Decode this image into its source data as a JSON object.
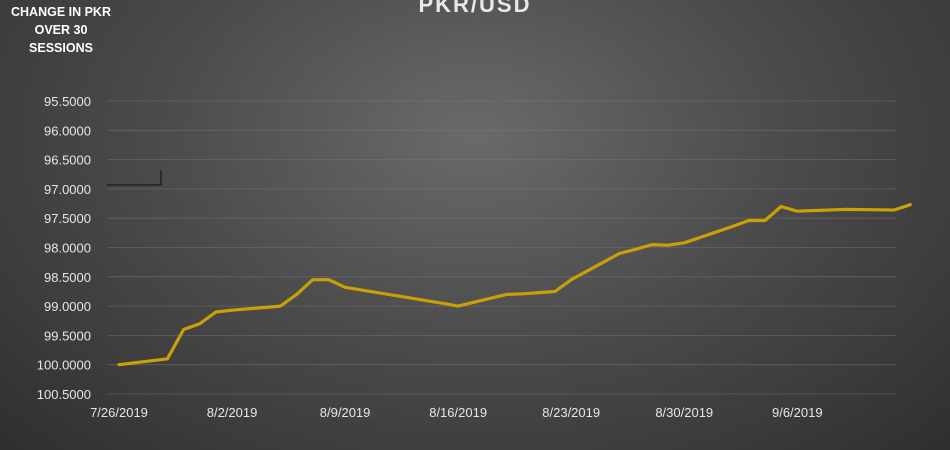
{
  "chart_data": {
    "type": "line",
    "title": "PKR/USD",
    "ylabel": "CHANGE IN PKR OVER 30 SESSIONS",
    "y_reversed": true,
    "ylim": [
      95.5,
      100.5
    ],
    "y_ticks": [
      "95.5000",
      "96.0000",
      "96.5000",
      "97.0000",
      "97.5000",
      "98.0000",
      "98.5000",
      "99.0000",
      "99.5000",
      "100.0000",
      "100.5000"
    ],
    "x_ticks": [
      "7/26/2019",
      "8/2/2019",
      "8/9/2019",
      "8/16/2019",
      "8/23/2019",
      "8/30/2019",
      "9/6/2019"
    ],
    "grid": true,
    "line_color": "#c9a006",
    "series": [
      {
        "x": [
          "7/26/2019",
          "7/29/2019",
          "7/30/2019",
          "7/31/2019",
          "8/1/2019",
          "8/2/2019",
          "8/5/2019",
          "8/6/2019",
          "8/7/2019",
          "8/8/2019",
          "8/9/2019",
          "8/15/2019",
          "8/16/2019",
          "8/19/2019",
          "8/20/2019",
          "8/21/2019",
          "8/22/2019",
          "8/23/2019",
          "8/26/2019",
          "8/27/2019",
          "8/28/2019",
          "8/29/2019",
          "8/30/2019",
          "9/2/2019",
          "9/3/2019",
          "9/4/2019",
          "9/5/2019",
          "9/6/2019",
          "9/9/2019",
          "9/12/2019",
          "9/13/2019"
        ],
        "values": [
          100.0,
          99.9,
          99.4,
          99.3,
          99.1,
          99.07,
          99.0,
          98.8,
          98.55,
          98.55,
          98.68,
          98.95,
          99.0,
          98.8,
          98.79,
          98.77,
          98.75,
          98.55,
          98.1,
          98.03,
          97.95,
          97.96,
          97.92,
          97.64,
          97.54,
          97.54,
          97.3,
          97.38,
          97.35,
          97.36,
          97.27
        ]
      }
    ]
  }
}
